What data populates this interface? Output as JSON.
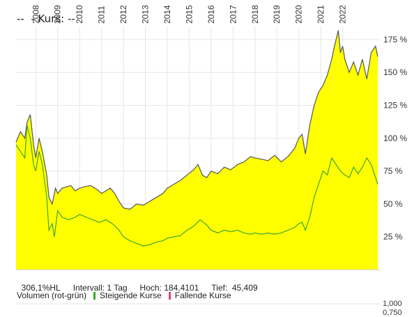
{
  "header": {
    "title": "--  - Kurs: --"
  },
  "stats": {
    "range": "306,1%HL",
    "interval": "Intervall: 1 Tag",
    "high": "Hoch: 184,4101",
    "low": "Tief:  45,409"
  },
  "volume": {
    "label": "Volumen (rot-grün)",
    "legend_up": "Steigende Kurse",
    "legend_down": "Fallende Kurse",
    "up_color": "#33aa22",
    "down_color": "#dd4466",
    "ticks": [
      "1,000",
      "0,750"
    ]
  },
  "colors": {
    "fill": "#ffff00",
    "price_line": "#555555",
    "compare_line": "#2f9e2f",
    "grid": "#e6e6e6"
  },
  "chart_data": {
    "type": "area",
    "x_ticks": [
      "2008",
      "2009",
      "2010",
      "2011",
      "2012",
      "2013",
      "2014",
      "2015",
      "2016",
      "2017",
      "2018",
      "2019",
      "2020",
      "2021",
      "2022"
    ],
    "x_range": [
      2007.1,
      2023.7
    ],
    "y_ticks": [
      "25 %",
      "50 %",
      "75 %",
      "100 %",
      "125 %",
      "150 %",
      "175 %"
    ],
    "y_tick_values": [
      25,
      50,
      75,
      100,
      125,
      150,
      175
    ],
    "ylim": [
      0,
      185
    ],
    "grid": true,
    "series": [
      {
        "style": "area",
        "x": [
          2007.1,
          2007.3,
          2007.5,
          2007.6,
          2007.75,
          2007.9,
          2008.0,
          2008.15,
          2008.3,
          2008.5,
          2008.6,
          2008.75,
          2008.9,
          2009.0,
          2009.2,
          2009.4,
          2009.6,
          2009.8,
          2010.0,
          2010.2,
          2010.5,
          2010.8,
          2011.0,
          2011.2,
          2011.4,
          2011.6,
          2011.8,
          2012.0,
          2012.3,
          2012.6,
          2012.9,
          2013.2,
          2013.5,
          2013.8,
          2014.0,
          2014.3,
          2014.6,
          2014.9,
          2015.2,
          2015.4,
          2015.6,
          2015.8,
          2016.0,
          2016.3,
          2016.6,
          2016.9,
          2017.2,
          2017.5,
          2017.8,
          2018.0,
          2018.3,
          2018.6,
          2018.9,
          2019.2,
          2019.5,
          2019.8,
          2020.0,
          2020.15,
          2020.3,
          2020.5,
          2020.7,
          2020.9,
          2021.1,
          2021.3,
          2021.5,
          2021.6,
          2021.7,
          2021.8,
          2021.9,
          2022.0,
          2022.1,
          2022.3,
          2022.5,
          2022.7,
          2022.9,
          2023.1,
          2023.3,
          2023.5,
          2023.6
        ],
        "values": [
          97,
          105,
          100,
          112,
          118,
          95,
          85,
          100,
          90,
          72,
          55,
          50,
          62,
          58,
          62,
          63,
          64,
          60,
          62,
          63,
          64,
          61,
          58,
          60,
          62,
          58,
          52,
          47,
          46,
          50,
          49,
          52,
          55,
          58,
          62,
          65,
          68,
          72,
          76,
          80,
          72,
          70,
          75,
          73,
          78,
          76,
          80,
          82,
          86,
          85,
          84,
          83,
          87,
          82,
          86,
          92,
          100,
          103,
          88,
          110,
          125,
          135,
          140,
          148,
          160,
          168,
          175,
          182,
          165,
          170,
          160,
          150,
          158,
          148,
          160,
          145,
          165,
          170,
          162
        ]
      },
      {
        "style": "line",
        "x": [
          2007.1,
          2007.3,
          2007.5,
          2007.6,
          2007.75,
          2007.9,
          2008.0,
          2008.15,
          2008.3,
          2008.5,
          2008.6,
          2008.75,
          2008.85,
          2009.0,
          2009.2,
          2009.5,
          2009.8,
          2010.0,
          2010.3,
          2010.6,
          2010.9,
          2011.2,
          2011.5,
          2011.8,
          2012.0,
          2012.3,
          2012.6,
          2012.9,
          2013.2,
          2013.5,
          2013.8,
          2014.0,
          2014.3,
          2014.6,
          2014.9,
          2015.2,
          2015.5,
          2015.8,
          2016.0,
          2016.3,
          2016.6,
          2016.9,
          2017.2,
          2017.5,
          2017.8,
          2018.0,
          2018.3,
          2018.6,
          2018.9,
          2019.2,
          2019.5,
          2019.8,
          2020.0,
          2020.15,
          2020.3,
          2020.5,
          2020.7,
          2020.9,
          2021.1,
          2021.3,
          2021.5,
          2021.7,
          2021.9,
          2022.1,
          2022.3,
          2022.5,
          2022.7,
          2022.9,
          2023.1,
          2023.3,
          2023.5,
          2023.6
        ],
        "values": [
          95,
          90,
          85,
          110,
          100,
          80,
          75,
          90,
          80,
          55,
          30,
          35,
          25,
          45,
          40,
          38,
          40,
          42,
          40,
          38,
          36,
          38,
          35,
          30,
          25,
          22,
          20,
          18,
          19,
          21,
          22,
          24,
          25,
          26,
          30,
          33,
          38,
          34,
          30,
          28,
          30,
          29,
          30,
          28,
          27,
          28,
          27,
          28,
          27,
          28,
          30,
          32,
          35,
          36,
          30,
          40,
          55,
          65,
          75,
          72,
          85,
          80,
          75,
          72,
          70,
          78,
          73,
          78,
          85,
          80,
          70,
          65
        ]
      }
    ]
  }
}
